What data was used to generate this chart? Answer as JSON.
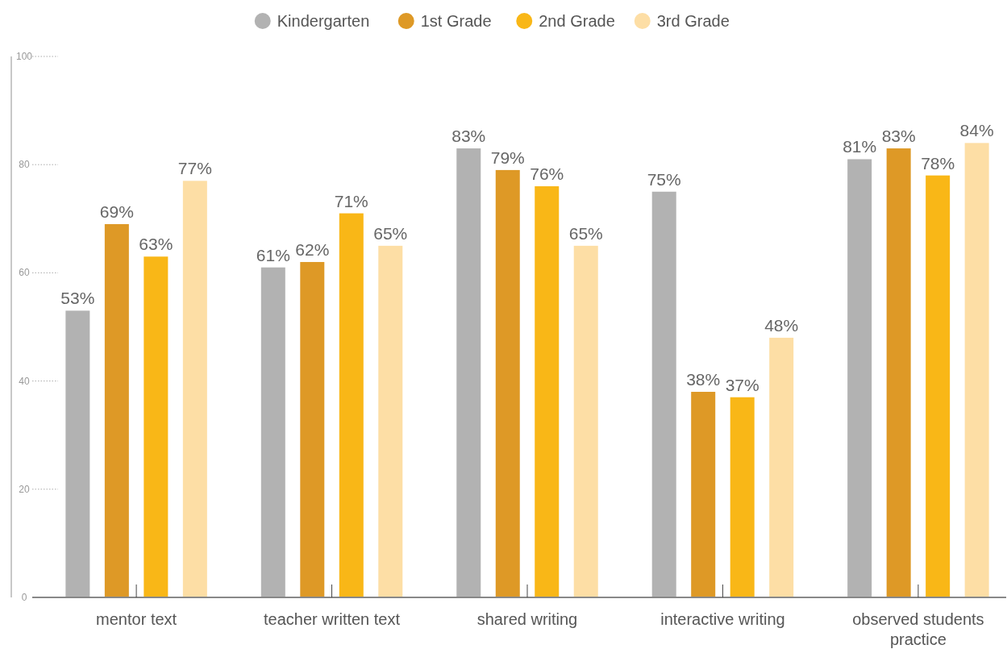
{
  "chart_data": {
    "type": "bar",
    "categories": [
      "mentor text",
      "teacher written text",
      "shared writing",
      "interactive writing",
      "observed students practice"
    ],
    "series": [
      {
        "name": "Kindergarten",
        "color": "#b2b2b2",
        "values": [
          53,
          61,
          83,
          75,
          81
        ],
        "value_labels": [
          "53%",
          "61%",
          "83%",
          "75%",
          "81%"
        ]
      },
      {
        "name": "1st Grade",
        "color": "#de9926",
        "values": [
          69,
          62,
          79,
          38,
          83
        ],
        "value_labels": [
          "69%",
          "62%",
          "79%",
          "38%",
          "83%"
        ]
      },
      {
        "name": "2nd Grade",
        "color": "#f9b717",
        "values": [
          63,
          71,
          76,
          37,
          78
        ],
        "value_labels": [
          "63%",
          "71%",
          "76%",
          "37%",
          "78%"
        ]
      },
      {
        "name": "3rd Grade",
        "color": "#fddea5",
        "values": [
          77,
          65,
          65,
          48,
          84
        ],
        "value_labels": [
          "77%",
          "65%",
          "65%",
          "48%",
          "84%"
        ]
      }
    ],
    "ylim": [
      0,
      100
    ],
    "yticks": [
      0,
      20,
      40,
      60,
      80,
      100
    ],
    "grid": false,
    "legend": "top"
  }
}
